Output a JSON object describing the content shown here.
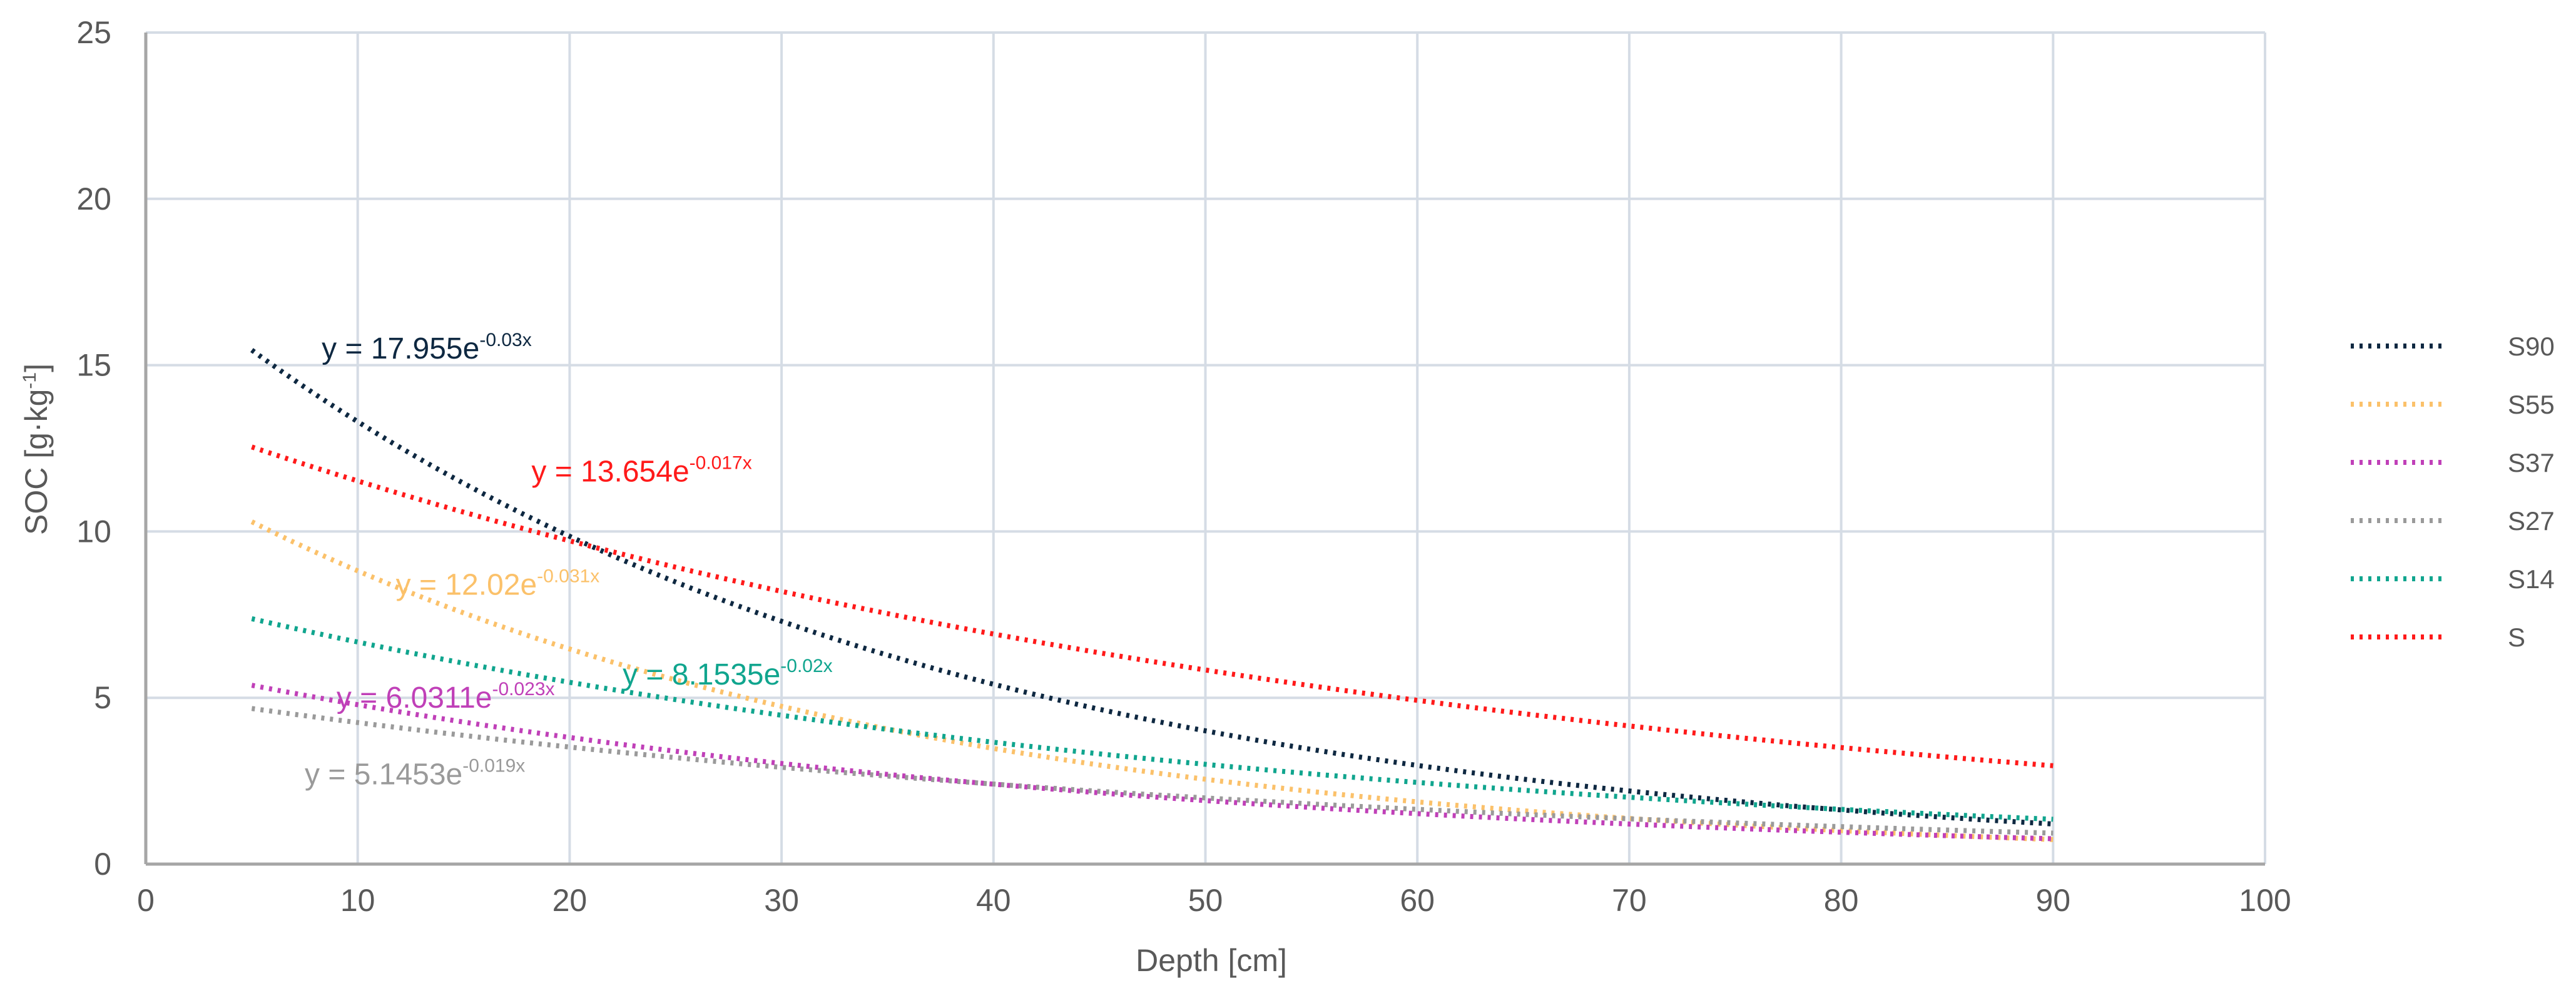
{
  "chart_data": {
    "type": "line",
    "title": "",
    "xlabel": "Depth [cm]",
    "ylabel_main": "SOC [g·kg",
    "ylabel_sup": "-1",
    "ylabel_end": "]",
    "xlim": [
      0,
      100
    ],
    "ylim": [
      0,
      25
    ],
    "xticks": [
      "0",
      "10",
      "20",
      "30",
      "40",
      "50",
      "60",
      "70",
      "80",
      "90",
      "100"
    ],
    "yticks": [
      "0",
      "5",
      "10",
      "15",
      "20",
      "25"
    ],
    "grid": true,
    "legend_position": "right",
    "x_range": [
      5,
      90
    ],
    "series": [
      {
        "name": "S90",
        "color": "#0e2841",
        "a": 17.955,
        "b": -0.03,
        "eq_main": "y = 17.955e",
        "eq_sup": "-0.03x",
        "eq_at": [
          8.3,
          15.2
        ]
      },
      {
        "name": "S55",
        "color": "#fbc16a",
        "a": 12.02,
        "b": -0.031,
        "eq_main": "y = 12.02e",
        "eq_sup": "-0.031x",
        "eq_at": [
          11.8,
          8.1
        ]
      },
      {
        "name": "S37",
        "color": "#c040b8",
        "a": 6.0311,
        "b": -0.023,
        "eq_main": "y = 6.0311e",
        "eq_sup": "-0.023x",
        "eq_at": [
          9.0,
          4.7
        ]
      },
      {
        "name": "S27",
        "color": "#9a9a9a",
        "a": 5.1453,
        "b": -0.019,
        "eq_main": "y = 5.1453e",
        "eq_sup": "-0.019x",
        "eq_at": [
          7.5,
          2.4
        ]
      },
      {
        "name": "S14",
        "color": "#10a58e",
        "a": 8.1535,
        "b": -0.02,
        "eq_main": "y = 8.1535e",
        "eq_sup": "-0.02x",
        "eq_at": [
          22.5,
          5.4
        ]
      },
      {
        "name": "S",
        "color": "#ff1a1a",
        "a": 13.654,
        "b": -0.017,
        "eq_main": "y = 13.654e",
        "eq_sup": "-0.017x",
        "eq_at": [
          18.2,
          11.5
        ]
      }
    ]
  }
}
